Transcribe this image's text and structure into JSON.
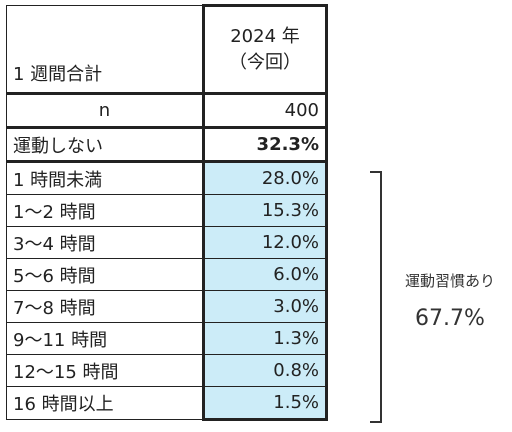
{
  "header": {
    "label": "1 週間合計",
    "year": "2024 年",
    "note": "（今回）"
  },
  "n_row": {
    "label": "n",
    "value": "400"
  },
  "no_exercise": {
    "label": "運動しない",
    "value": "32.3%"
  },
  "rows": [
    {
      "label": "1 時間未満",
      "value": "28.0%"
    },
    {
      "label": "1～2 時間",
      "value": "15.3%"
    },
    {
      "label": "3～4 時間",
      "value": "12.0%"
    },
    {
      "label": "5～6 時間",
      "value": "6.0%"
    },
    {
      "label": "7～8 時間",
      "value": "3.0%"
    },
    {
      "label": "9～11 時間",
      "value": "1.3%"
    },
    {
      "label": "12～15 時間",
      "value": "0.8%"
    },
    {
      "label": "16 時間以上",
      "value": "1.5%"
    }
  ],
  "bracket": {
    "label": "運動習慣あり",
    "value": "67.7%"
  },
  "colors": {
    "highlight": "#ccecf8",
    "border": "#222222"
  }
}
